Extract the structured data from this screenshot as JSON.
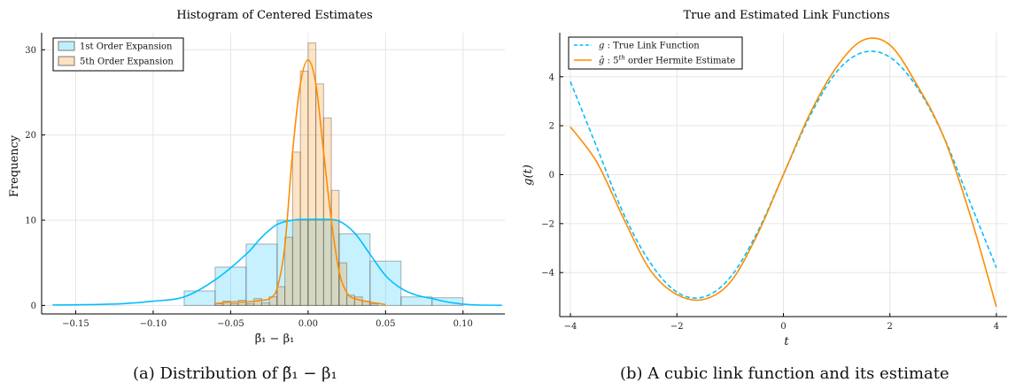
{
  "chart_data": [
    {
      "type": "bar",
      "title": "Histogram of Centered Estimates",
      "xlabel": "β̃₁ − β₁",
      "ylabel": "Frequency",
      "xlim": [
        -0.172,
        0.127
      ],
      "ylim": [
        -1,
        32
      ],
      "xticks": [
        -0.15,
        -0.1,
        -0.05,
        0.0,
        0.05,
        0.1
      ],
      "xtick_labels": [
        "−0.15",
        "−0.10",
        "−0.05",
        "0.00",
        "0.05",
        "0.10"
      ],
      "yticks": [
        0,
        10,
        20,
        30
      ],
      "ytick_labels": [
        "0",
        "10",
        "20",
        "30"
      ],
      "grid": true,
      "legend_position": "top-left",
      "series": [
        {
          "name": "1st Order Expansion",
          "color": "#00bfff",
          "bin_edges": [
            -0.08,
            -0.06,
            -0.04,
            -0.02,
            0.0,
            0.02,
            0.04,
            0.06,
            0.08,
            0.1
          ],
          "counts": [
            1.7,
            4.5,
            7.2,
            10.0,
            10.0,
            8.4,
            5.2,
            1.0,
            0.9
          ],
          "kde_x": [
            -0.165,
            -0.14,
            -0.12,
            -0.1,
            -0.08,
            -0.06,
            -0.04,
            -0.03,
            -0.02,
            -0.01,
            0.0,
            0.01,
            0.02,
            0.03,
            0.04,
            0.05,
            0.06,
            0.07,
            0.08,
            0.09,
            0.1,
            0.11,
            0.125
          ],
          "kde_y": [
            0.05,
            0.1,
            0.2,
            0.5,
            1.0,
            3.0,
            6.0,
            8.0,
            9.5,
            10.0,
            10.1,
            10.1,
            9.9,
            8.5,
            6.0,
            3.5,
            2.0,
            1.2,
            0.8,
            0.4,
            0.15,
            0.05,
            0.02
          ]
        },
        {
          "name": "5th Order Expansion",
          "color": "#ff8c00",
          "bin_edges": [
            -0.06,
            -0.055,
            -0.05,
            -0.045,
            -0.04,
            -0.035,
            -0.03,
            -0.025,
            -0.02,
            -0.015,
            -0.01,
            -0.005,
            0.0,
            0.005,
            0.01,
            0.015,
            0.02,
            0.025,
            0.03,
            0.035,
            0.04,
            0.045
          ],
          "counts": [
            0.2,
            0.5,
            0.2,
            0.6,
            0.2,
            0.8,
            0.3,
            1.0,
            2.2,
            8.0,
            18.0,
            27.5,
            30.8,
            26.0,
            22.0,
            13.5,
            5.0,
            1.2,
            1.0,
            0.5,
            0.2
          ],
          "kde_x": [
            -0.06,
            -0.05,
            -0.04,
            -0.03,
            -0.025,
            -0.02,
            -0.015,
            -0.01,
            -0.005,
            0.0,
            0.005,
            0.01,
            0.015,
            0.02,
            0.025,
            0.03,
            0.04,
            0.05
          ],
          "kde_y": [
            0.2,
            0.4,
            0.4,
            0.6,
            0.8,
            2.0,
            7.0,
            18.0,
            26.0,
            28.8,
            26.0,
            18.0,
            10.0,
            4.0,
            1.5,
            0.8,
            0.4,
            0.1
          ]
        }
      ],
      "caption": "(a) Distribution of β̃₁ − β₁"
    },
    {
      "type": "line",
      "title": "True and Estimated Link Functions",
      "xlabel": "t",
      "ylabel": "g(t)",
      "xlim": [
        -4.2,
        4.2
      ],
      "ylim": [
        -5.8,
        5.8
      ],
      "xticks": [
        -4,
        -2,
        0,
        2,
        4
      ],
      "xtick_labels": [
        "−4",
        "−2",
        "0",
        "2",
        "4"
      ],
      "yticks": [
        -4,
        -2,
        0,
        2,
        4
      ],
      "ytick_labels": [
        "−4",
        "−2",
        "0",
        "2",
        "4"
      ],
      "grid": true,
      "legend_position": "top-left",
      "series": [
        {
          "name": "g : True Link Function",
          "legend_symbol": "g",
          "legend_text": " :  True Link Function",
          "color": "#00bfff",
          "dash": true,
          "x": [
            -4,
            -3.5,
            -3,
            -2.5,
            -2,
            -1.5,
            -1,
            -0.5,
            0,
            0.5,
            1,
            1.5,
            2,
            2.5,
            3,
            3.5,
            4
          ],
          "y": [
            3.8,
            1.1,
            -1.6,
            -3.6,
            -4.8,
            -5.0,
            -4.2,
            -2.4,
            0.0,
            2.4,
            4.2,
            5.0,
            4.8,
            3.6,
            1.6,
            -1.1,
            -3.8
          ]
        },
        {
          "name": "ĝ : 5th order Hermite Estimate",
          "legend_symbol": "ĝ",
          "legend_text": " :  5",
          "legend_sup": "th",
          "legend_rest": " order Hermite Estimate",
          "color": "#ff8c00",
          "dash": false,
          "x": [
            -4,
            -3.5,
            -3,
            -2.5,
            -2,
            -1.5,
            -1,
            -0.5,
            0,
            0.5,
            1,
            1.5,
            2,
            2.5,
            3,
            3.5,
            4
          ],
          "y": [
            1.95,
            0.5,
            -1.8,
            -3.9,
            -4.9,
            -5.1,
            -4.4,
            -2.5,
            0.0,
            2.5,
            4.4,
            5.5,
            5.3,
            3.7,
            1.6,
            -1.6,
            -5.4
          ]
        }
      ],
      "caption": "(b) A cubic link function and its estimate"
    }
  ]
}
